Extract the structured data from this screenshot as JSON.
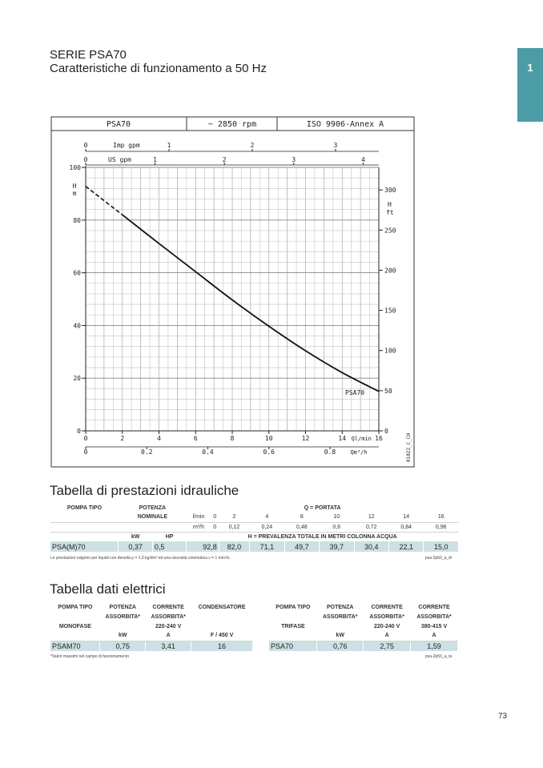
{
  "header": {
    "series": "SERIE PSA70",
    "subtitle": "Caratteristiche di funzionamento a 50 Hz",
    "tab_number": "1"
  },
  "chart_data": {
    "type": "line",
    "header_cells": [
      "PSA70",
      "~ 2850 rpm",
      "ISO 9906-Annex A"
    ],
    "curve_label": "PSA70",
    "code_label": "01022_C_CH",
    "left_axis_label": [
      "H",
      "m"
    ],
    "right_axis_label": [
      "H",
      "ft"
    ],
    "left_ticks": [
      "0",
      "20",
      "40",
      "60",
      "80",
      "100"
    ],
    "right_ticks": [
      "0",
      "50",
      "100",
      "150",
      "200",
      "250",
      "300"
    ],
    "bottom_lmin_ticks": [
      "0",
      "2",
      "4",
      "6",
      "8",
      "10",
      "12",
      "14",
      "16"
    ],
    "bottom_lmin_label": "Ql/min",
    "bottom_m3h_ticks": [
      "0",
      "0.2",
      "0.4",
      "0.6",
      "0.8"
    ],
    "bottom_m3h_label": "Qm³/h",
    "top_imp_label": "Imp gpm",
    "top_imp_ticks": [
      "0",
      "1",
      "2",
      "3"
    ],
    "top_us_label": "US gpm",
    "top_us_ticks": [
      "0",
      "1",
      "2",
      "3",
      "4"
    ],
    "xlim": [
      0,
      16
    ],
    "ylim": [
      0,
      100
    ],
    "series": [
      {
        "x": [
          0,
          2,
          4,
          6,
          8,
          10,
          12,
          14,
          16
        ],
        "y": [
          92.8,
          82.0,
          71.1,
          60.4,
          49.7,
          39.7,
          30.4,
          22.1,
          15.0
        ],
        "dashed_until_x": 2
      }
    ]
  },
  "hydraulic": {
    "title": "Tabella di prestazioni idrauliche",
    "col_pump_type": "POMPA TIPO",
    "col_power": "POTENZA",
    "col_power2": "NOMINALE",
    "col_flow": "Q = PORTATA",
    "unit_lmin": "l/min",
    "unit_m3h": "m³/h",
    "lmin_values": [
      "0",
      "2",
      "4",
      "8",
      "10",
      "12",
      "14",
      "16"
    ],
    "m3h_values": [
      "0",
      "0,12",
      "0,24",
      "0,48",
      "0,6",
      "0,72",
      "0,84",
      "0,96"
    ],
    "unit_kw": "kW",
    "unit_hp": "HP",
    "head_label": "H = PREVALENZA TOTALE IN METRI COLONNA ACQUA",
    "row": {
      "pump": "PSA(M)70",
      "kw": "0,37",
      "hp": "0,5",
      "values": [
        "92,8",
        "82,0",
        "71,1",
        "49,7",
        "39,7",
        "30,4",
        "22,1",
        "15,0"
      ]
    },
    "note": "Le prestazioni valgono per liquidi con densità ρ = 1,0 kg/dm³ ed una viscosità cinematica ν = 1 mm²/s.",
    "code": "psa-2p50_a_th"
  },
  "electric": {
    "title": "Tabella dati elettrici",
    "mono": {
      "h_pump": "POMPA TIPO",
      "h_power": "POTENZA",
      "h_power2": "ASSORBITA*",
      "h_current": "CORRENTE",
      "h_current2": "ASSORBITA*",
      "h_current3": "220-240 V",
      "h_cond": "CONDENSATORE",
      "type_label": "MONOFASE",
      "u_kw": "kW",
      "u_a": "A",
      "u_f": "F / 450 V",
      "row": {
        "pump": "PSAM70",
        "kw": "0,75",
        "a": "3,41",
        "f": "16"
      }
    },
    "tri": {
      "h_pump": "POMPA TIPO",
      "h_power": "POTENZA",
      "h_power2": "ASSORBITA*",
      "h_current": "CORRENTE",
      "h_current2": "ASSORBITA*",
      "h_current3": "220-240 V",
      "h_current_b": "CORRENTE",
      "h_current_b2": "ASSORBITA*",
      "h_current_b3": "380-415 V",
      "type_label": "TRIFASE",
      "u_kw": "kW",
      "u_a": "A",
      "u_a2": "A",
      "row": {
        "pump": "PSA70",
        "kw": "0,76",
        "a": "2,75",
        "a2": "1,59"
      }
    },
    "note": "*Valori massimi nel campo di funzionamento",
    "code": "psa-2p50_a_te"
  },
  "footer": {
    "page": "73"
  }
}
